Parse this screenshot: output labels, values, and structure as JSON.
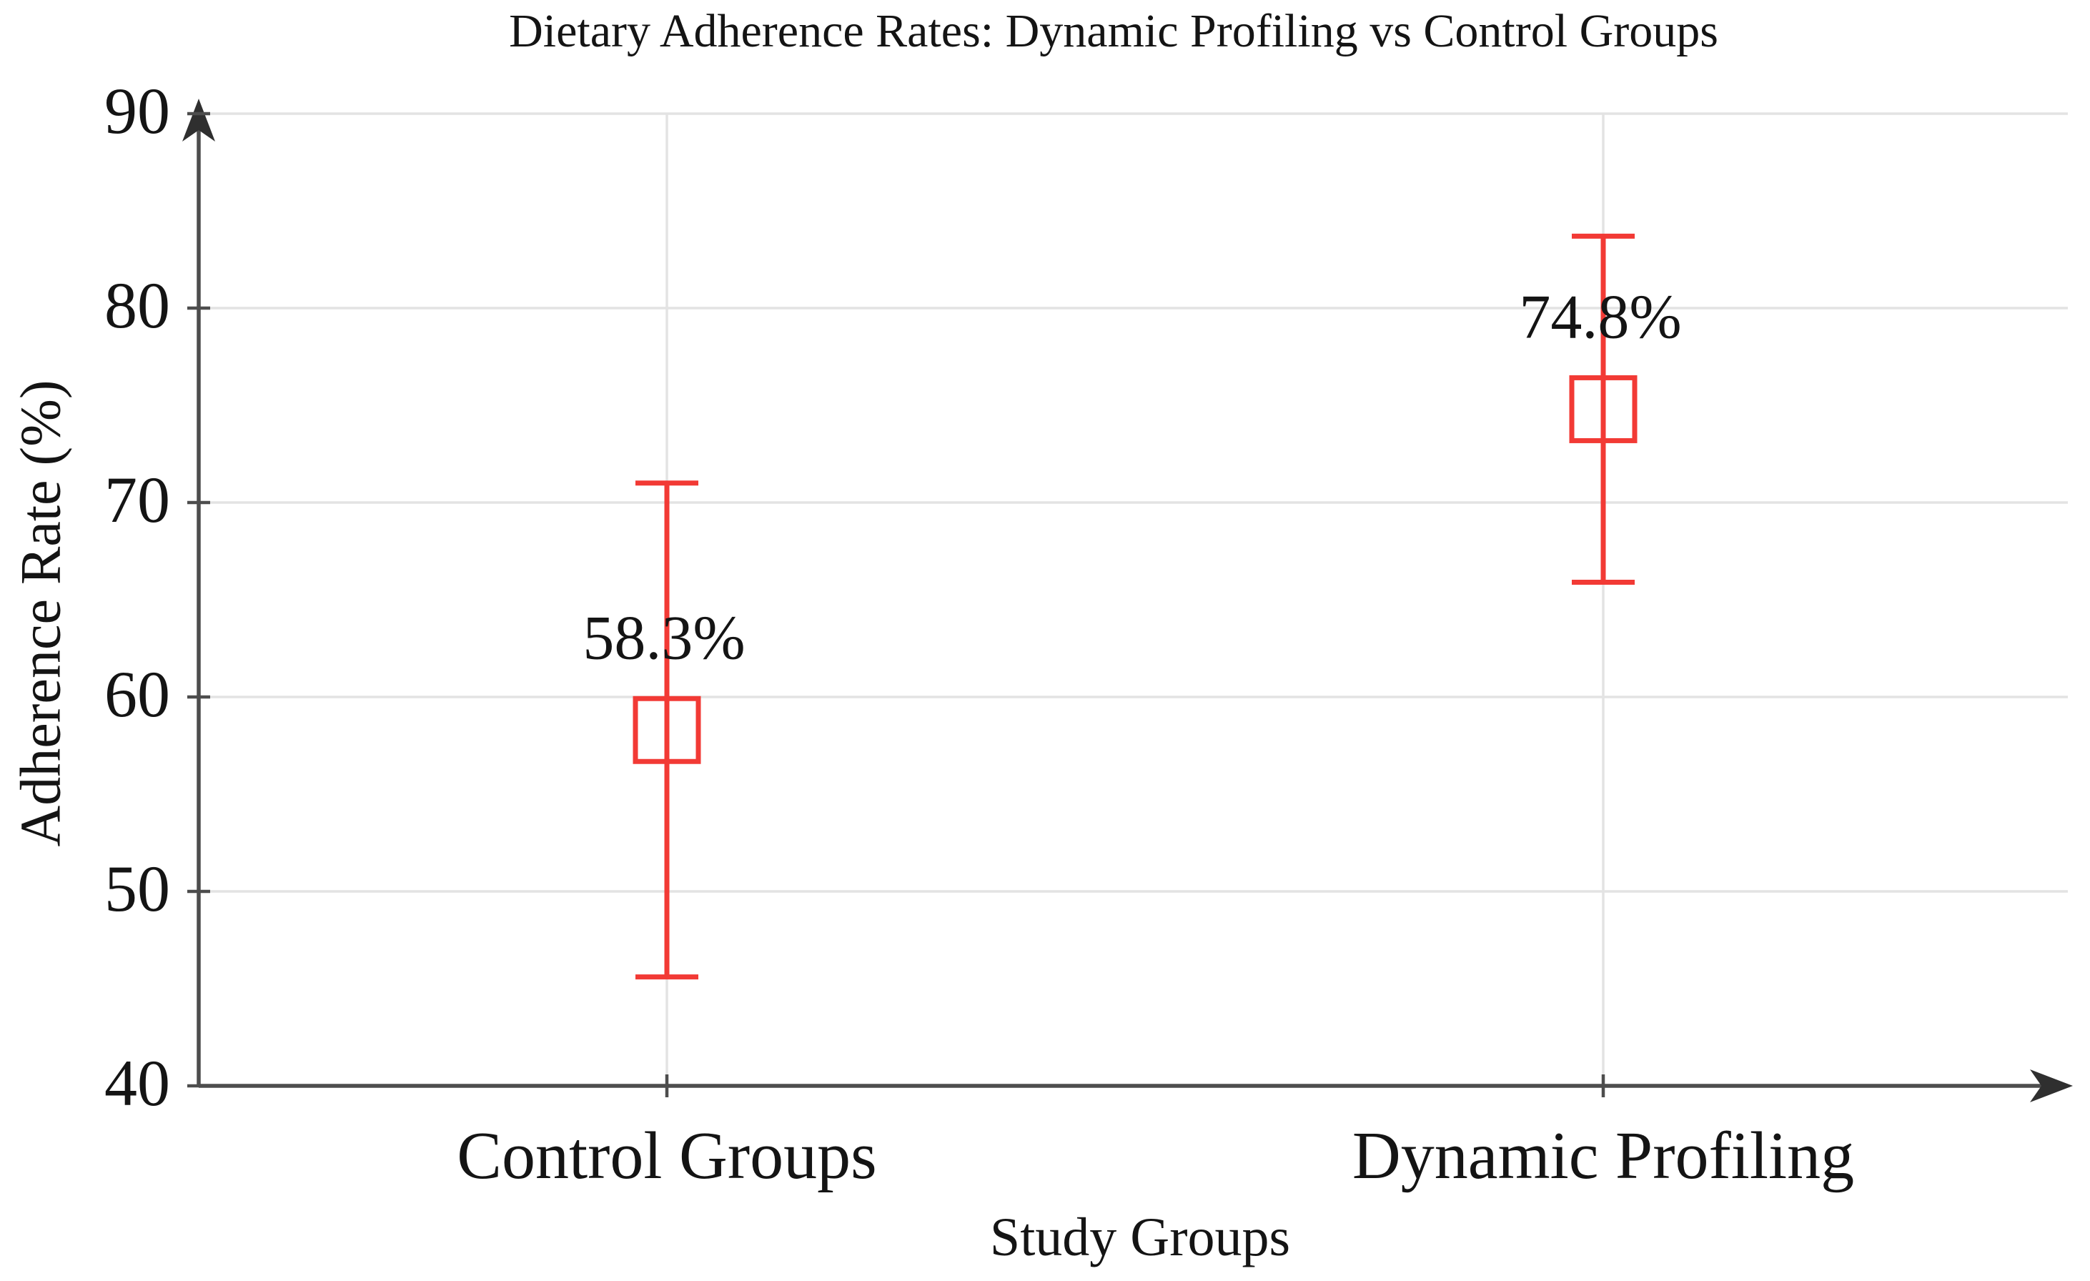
{
  "chart_data": {
    "type": "scatter",
    "subtype": "error-bar-plot",
    "title": "Dietary Adherence Rates: Dynamic Profiling vs Control Groups",
    "xlabel": "Study Groups",
    "ylabel": "Adherence Rate (%)",
    "ylim": [
      40,
      90
    ],
    "yticks": [
      40,
      50,
      60,
      70,
      80,
      90
    ],
    "grid": true,
    "axis_arrows": true,
    "legend": "none",
    "categories": [
      "Control Groups",
      "Dynamic Profiling"
    ],
    "series": [
      {
        "name": "Adherence rate",
        "marker": "open-square",
        "points": [
          {
            "category": "Control Groups",
            "mean": 58.3,
            "label": "58.3%",
            "ci_low": 45.6,
            "ci_high": 71.0
          },
          {
            "category": "Dynamic Profiling",
            "mean": 74.8,
            "label": "74.8%",
            "ci_low": 65.9,
            "ci_high": 83.7
          }
        ]
      }
    ],
    "colors": {
      "series": "#f23a35",
      "grid": "#e3e3e3",
      "axis": "#4d4d4d",
      "text": "#141414",
      "background": "#ffffff"
    }
  }
}
